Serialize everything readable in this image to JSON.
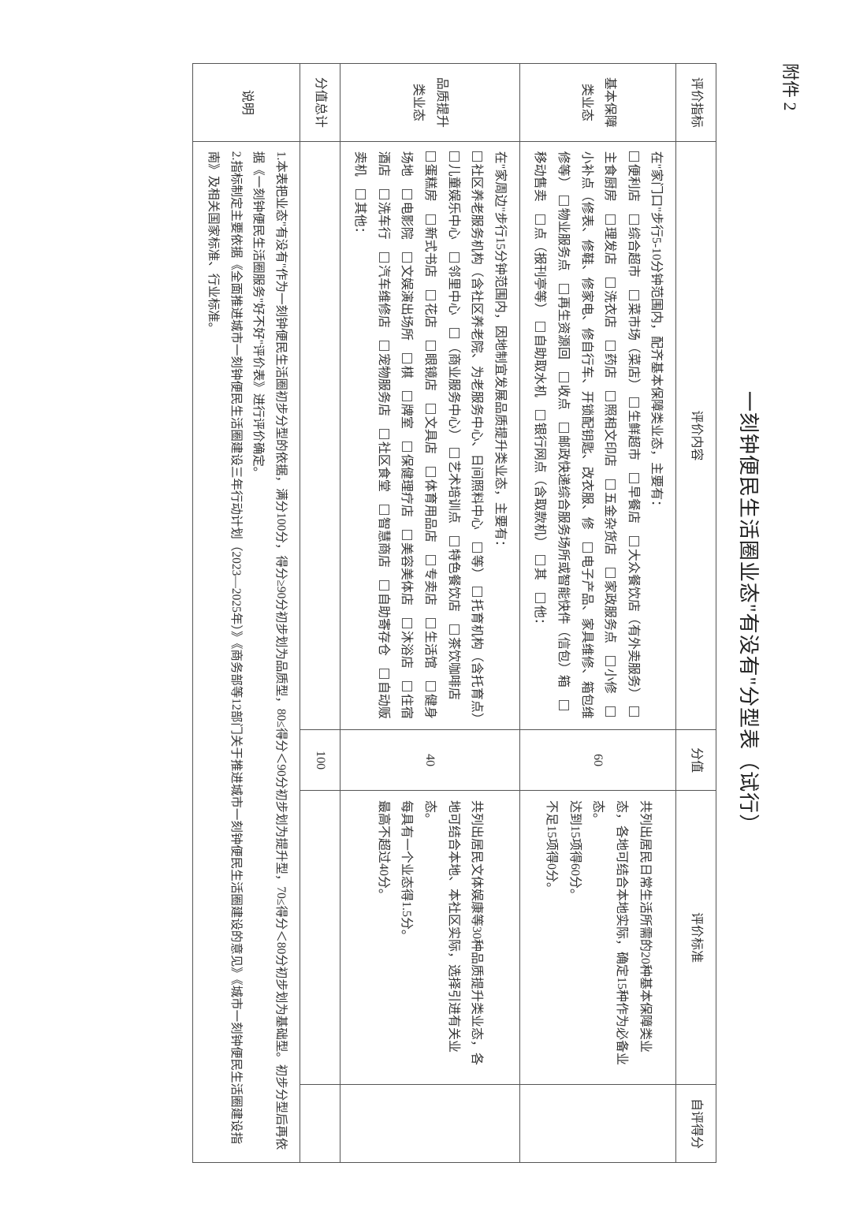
{
  "attachment_label": "附件 2",
  "title": "一刻钟便民生活圈业态\"有没有\"分型表（试行）",
  "header": {
    "indicator": "评价指标",
    "content": "评价内容",
    "score_max": "分值",
    "standard": "评价标准",
    "self_score": "自评得分"
  },
  "row1": {
    "indicator": "基本保障类业态",
    "lead": "在\"家门口\"步行5-10分钟范围内，配齐基本保障类业态，主要有：",
    "items": [
      "便利店",
      "综合超市",
      "菜市场（菜店）",
      "生鲜超市",
      "早餐店",
      "大众餐饮店（有外卖服务）",
      "主食厨房",
      "理发店",
      "洗衣店",
      "药店",
      "照相文印店",
      "五金杂货店",
      "家政服务点",
      "小修",
      "小补点（修表、修鞋、修家电、修自行车、开锁配钥匙、改衣服、修",
      "电子产品、家具维修、箱包维修等）",
      "物业服务点",
      "再生资源回",
      "收点",
      "邮政快递综合服务场所或智能快件（信包）箱",
      "移动售卖",
      "点（报刊亭等）",
      "自助取水机",
      "银行网点（含取款机）",
      "其",
      "他："
    ],
    "score_max": "60",
    "standard": "共列出居民日常生活所需的20种基本保障类业态，各地可结合本地实际，确定15种作为必备业态。\n达到15项得60分。\n不足15项得0分。"
  },
  "row2": {
    "indicator": "品质提升类业态",
    "lead": "在\"家周边\"步行15分钟范围内，因地制宜发展品质提升类业态，主要有：",
    "items": [
      "社区养老服务机构（含社区养老院、为老服务中心、日间照料中心",
      "等）",
      "托育机构（含托育点）",
      "儿童娱乐中心",
      "邻里中心",
      "（商业服务中心）",
      "艺术培训点",
      "特色餐饮店",
      "茶饮咖啡店",
      "蛋糕房",
      "新式书店",
      "花店",
      "眼镜店",
      "文具店",
      "体育用品店",
      "专卖店",
      "生活馆",
      "健身场地",
      "电影院",
      "文娱演出场所",
      "棋",
      "牌室",
      "保健理疗店",
      "美容美体店",
      "沐浴店",
      "住宿酒店",
      "洗车行",
      "汽车维修店",
      "宠物服务店",
      "社区食堂",
      "智慧商店",
      "自助寄存仓",
      "自动贩卖机",
      "其他："
    ],
    "score_max": "40",
    "standard": "共列出居民文体娱康等30种品质提升类业态，各地可结合本地、本社区实际，选择引进有关业态。\n每具有一个业态得1.5分。\n最高不超过40分。"
  },
  "total": {
    "label": "分值总计",
    "value": "100"
  },
  "notes": {
    "label": "说明",
    "body": "1.本表把业态\"有没有\"作为一刻钟便民生活圈初步分型的依据，满分100分，得分≥90分初步划为品质型，80≤得分＜90分初步划为提升型，70≤得分＜80分初步划为基础型。初步分型后再依据《一刻钟便民生活圈服务\"好不好\"评价表》进行评价确定。\n2.指标制定主要依据《全面推进城市一刻钟便民生活圈建设三年行动计划（2023—2025年）》《商务部等12部门关于推进城市一刻钟便民生活圈建设的意见》《城市一刻钟便民生活圈建设指南》及相关国家标准、行业标准。"
  },
  "colors": {
    "page_bg": "#ffffff",
    "text": "#333333",
    "border": "#555555"
  }
}
